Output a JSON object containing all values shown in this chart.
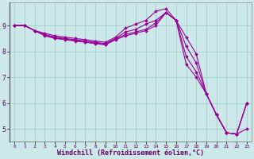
{
  "xlabel": "Windchill (Refroidissement éolien,°C)",
  "background_color": "#cce8e8",
  "line_color": "#990099",
  "grid_color": "#99cccc",
  "x": [
    0,
    1,
    2,
    3,
    4,
    5,
    6,
    7,
    8,
    9,
    10,
    11,
    12,
    13,
    14,
    15,
    16,
    17,
    18,
    19,
    20,
    21,
    22,
    23
  ],
  "lines": [
    [
      9.0,
      9.0,
      8.8,
      8.7,
      8.6,
      8.55,
      8.5,
      8.45,
      8.4,
      8.35,
      8.55,
      8.9,
      9.05,
      9.2,
      9.55,
      9.65,
      9.2,
      8.55,
      7.9,
      6.35,
      5.55,
      4.85,
      4.8,
      5.0
    ],
    [
      9.0,
      9.0,
      8.8,
      8.65,
      8.55,
      8.5,
      8.45,
      8.4,
      8.35,
      8.3,
      8.5,
      8.75,
      8.85,
      9.05,
      9.2,
      9.5,
      9.2,
      8.2,
      7.55,
      6.35,
      5.55,
      4.85,
      4.8,
      6.0
    ],
    [
      9.0,
      9.0,
      8.8,
      8.62,
      8.52,
      8.47,
      8.42,
      8.37,
      8.32,
      8.27,
      8.47,
      8.65,
      8.75,
      8.85,
      9.1,
      9.5,
      9.2,
      7.8,
      7.2,
      6.35,
      5.55,
      4.85,
      4.8,
      6.0
    ],
    [
      9.0,
      9.0,
      8.8,
      8.6,
      8.5,
      8.45,
      8.4,
      8.35,
      8.3,
      8.25,
      8.45,
      8.6,
      8.7,
      8.8,
      9.0,
      9.5,
      9.2,
      7.5,
      7.0,
      6.35,
      5.55,
      4.85,
      4.8,
      6.0
    ]
  ],
  "xlim": [
    -0.5,
    23.5
  ],
  "ylim": [
    4.5,
    9.9
  ],
  "yticks": [
    5,
    6,
    7,
    8,
    9
  ],
  "xticks": [
    0,
    1,
    2,
    3,
    4,
    5,
    6,
    7,
    8,
    9,
    10,
    11,
    12,
    13,
    14,
    15,
    16,
    17,
    18,
    19,
    20,
    21,
    22,
    23
  ]
}
